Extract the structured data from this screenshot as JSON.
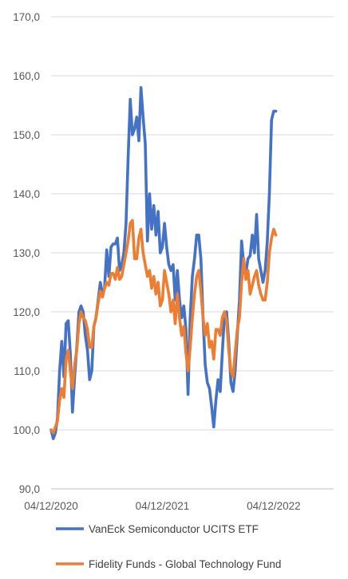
{
  "chart_data": {
    "type": "line",
    "title": "",
    "xlabel": "",
    "ylabel": "",
    "ylim": [
      90,
      170
    ],
    "y_ticks": [
      "90,0",
      "100,0",
      "110,0",
      "120,0",
      "130,0",
      "140,0",
      "150,0",
      "160,0",
      "170,0"
    ],
    "x_tick_labels": [
      "04/12/2020",
      "04/12/2021",
      "04/12/2022"
    ],
    "x_tick_positions": [
      0,
      52,
      104
    ],
    "x_range": [
      0,
      132
    ],
    "grid": "horizontal",
    "legend_position": "bottom",
    "series": [
      {
        "name": "VanEck Semiconductor UCITS ETF",
        "color": "#4472C4",
        "points": [
          [
            0,
            100
          ],
          [
            1,
            98.5
          ],
          [
            2,
            99.5
          ],
          [
            3,
            102
          ],
          [
            4,
            110
          ],
          [
            5,
            115
          ],
          [
            6,
            109
          ],
          [
            7,
            118
          ],
          [
            8,
            118.5
          ],
          [
            9,
            113
          ],
          [
            10,
            103
          ],
          [
            11,
            109
          ],
          [
            12,
            114
          ],
          [
            13,
            120
          ],
          [
            14,
            121
          ],
          [
            15,
            120
          ],
          [
            16,
            116
          ],
          [
            17,
            113.5
          ],
          [
            18,
            108.5
          ],
          [
            19,
            110
          ],
          [
            20,
            117.5
          ],
          [
            21,
            119
          ],
          [
            22,
            122
          ],
          [
            23,
            125
          ],
          [
            24,
            123
          ],
          [
            25,
            124
          ],
          [
            26,
            130.5
          ],
          [
            27,
            126
          ],
          [
            28,
            131
          ],
          [
            29,
            131.5
          ],
          [
            30,
            131.5
          ],
          [
            31,
            132.5
          ],
          [
            32,
            127
          ],
          [
            33,
            128
          ],
          [
            34,
            130
          ],
          [
            35,
            135
          ],
          [
            36,
            146
          ],
          [
            37,
            156
          ],
          [
            38,
            150
          ],
          [
            39,
            151
          ],
          [
            40,
            153
          ],
          [
            41,
            149
          ],
          [
            42,
            158
          ],
          [
            43,
            153
          ],
          [
            44,
            148.5
          ],
          [
            45,
            132
          ],
          [
            46,
            140
          ],
          [
            47,
            134
          ],
          [
            48,
            138
          ],
          [
            49,
            133
          ],
          [
            50,
            137
          ],
          [
            51,
            130
          ],
          [
            52,
            131
          ],
          [
            53,
            135
          ],
          [
            54,
            131
          ],
          [
            55,
            128
          ],
          [
            56,
            127
          ],
          [
            57,
            128
          ],
          [
            58,
            122
          ],
          [
            59,
            127
          ],
          [
            60,
            122
          ],
          [
            61,
            119
          ],
          [
            62,
            121
          ],
          [
            63,
            117
          ],
          [
            64,
            106
          ],
          [
            65,
            119
          ],
          [
            66,
            126
          ],
          [
            67,
            129
          ],
          [
            68,
            133
          ],
          [
            69,
            133
          ],
          [
            70,
            129
          ],
          [
            71,
            119
          ],
          [
            72,
            111
          ],
          [
            73,
            108
          ],
          [
            74,
            107
          ],
          [
            75,
            104
          ],
          [
            76,
            100.5
          ],
          [
            77,
            105
          ],
          [
            78,
            108.5
          ],
          [
            79,
            106.5
          ],
          [
            80,
            113
          ],
          [
            81,
            119.5
          ],
          [
            82,
            120
          ],
          [
            83,
            115
          ],
          [
            84,
            108
          ],
          [
            85,
            106.5
          ],
          [
            86,
            110
          ],
          [
            87,
            116
          ],
          [
            88,
            122
          ],
          [
            89,
            132
          ],
          [
            90,
            128
          ],
          [
            91,
            126.5
          ],
          [
            92,
            129
          ],
          [
            93,
            129.5
          ],
          [
            94,
            133
          ],
          [
            95,
            130
          ],
          [
            96,
            136.5
          ],
          [
            97,
            129
          ],
          [
            98,
            127
          ],
          [
            99,
            125
          ],
          [
            100,
            127
          ],
          [
            101,
            132
          ],
          [
            102,
            140
          ],
          [
            103,
            152.5
          ],
          [
            104,
            154
          ],
          [
            105,
            154
          ]
        ]
      },
      {
        "name": "Fidelity Funds - Global Technology Fund",
        "color": "#ED7D31",
        "points": [
          [
            0,
            100
          ],
          [
            1,
            99.5
          ],
          [
            2,
            100.5
          ],
          [
            3,
            101.5
          ],
          [
            4,
            105
          ],
          [
            5,
            107
          ],
          [
            6,
            105.5
          ],
          [
            7,
            112
          ],
          [
            8,
            113.5
          ],
          [
            9,
            110
          ],
          [
            10,
            107
          ],
          [
            11,
            111
          ],
          [
            12,
            113.5
          ],
          [
            13,
            118
          ],
          [
            14,
            120
          ],
          [
            15,
            119
          ],
          [
            16,
            118.5
          ],
          [
            17,
            117
          ],
          [
            18,
            114
          ],
          [
            19,
            114
          ],
          [
            20,
            117.5
          ],
          [
            21,
            119
          ],
          [
            22,
            121.5
          ],
          [
            23,
            123.5
          ],
          [
            24,
            122.5
          ],
          [
            25,
            124
          ],
          [
            26,
            125
          ],
          [
            27,
            124.5
          ],
          [
            28,
            126.5
          ],
          [
            29,
            126.5
          ],
          [
            30,
            125.5
          ],
          [
            31,
            127.5
          ],
          [
            32,
            125.5
          ],
          [
            33,
            126
          ],
          [
            34,
            128
          ],
          [
            35,
            130
          ],
          [
            36,
            132
          ],
          [
            37,
            135
          ],
          [
            38,
            135.5
          ],
          [
            39,
            129
          ],
          [
            40,
            129
          ],
          [
            41,
            132.5
          ],
          [
            42,
            134
          ],
          [
            43,
            130
          ],
          [
            44,
            128
          ],
          [
            45,
            126
          ],
          [
            46,
            127
          ],
          [
            47,
            124
          ],
          [
            48,
            126
          ],
          [
            49,
            123
          ],
          [
            50,
            125
          ],
          [
            51,
            121
          ],
          [
            52,
            122
          ],
          [
            53,
            127
          ],
          [
            54,
            125
          ],
          [
            55,
            123
          ],
          [
            56,
            120
          ],
          [
            57,
            122
          ],
          [
            58,
            118
          ],
          [
            59,
            123
          ],
          [
            60,
            119
          ],
          [
            61,
            116
          ],
          [
            62,
            117.5
          ],
          [
            63,
            113
          ],
          [
            64,
            110
          ],
          [
            65,
            114
          ],
          [
            66,
            119
          ],
          [
            67,
            123
          ],
          [
            68,
            126
          ],
          [
            69,
            127
          ],
          [
            70,
            123.5
          ],
          [
            71,
            119
          ],
          [
            72,
            116
          ],
          [
            73,
            118
          ],
          [
            74,
            114
          ],
          [
            75,
            115
          ],
          [
            76,
            112
          ],
          [
            77,
            117
          ],
          [
            78,
            117
          ],
          [
            79,
            116
          ],
          [
            80,
            119
          ],
          [
            81,
            120
          ],
          [
            82,
            118.5
          ],
          [
            83,
            113.5
          ],
          [
            84,
            110
          ],
          [
            85,
            109
          ],
          [
            86,
            113
          ],
          [
            87,
            117
          ],
          [
            88,
            119
          ],
          [
            89,
            125
          ],
          [
            90,
            129
          ],
          [
            91,
            125.5
          ],
          [
            92,
            127
          ],
          [
            93,
            123
          ],
          [
            94,
            124.5
          ],
          [
            95,
            126
          ],
          [
            96,
            127
          ],
          [
            97,
            124.5
          ],
          [
            98,
            123
          ],
          [
            99,
            122
          ],
          [
            100,
            122
          ],
          [
            101,
            125
          ],
          [
            102,
            130
          ],
          [
            103,
            132.5
          ],
          [
            104,
            134
          ],
          [
            105,
            133
          ]
        ]
      }
    ]
  }
}
